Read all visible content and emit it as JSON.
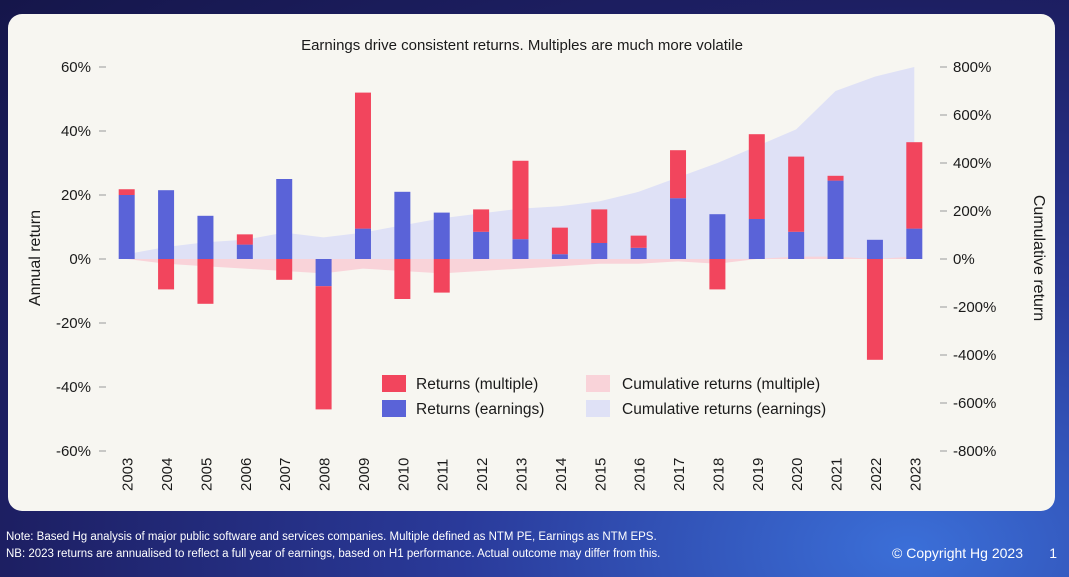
{
  "chart_data": {
    "type": "bar",
    "title": "Earnings drive consistent returns. Multiples are much more volatile",
    "ylabel": "Annual return",
    "y2label": "Cumulative return",
    "ylim": [
      -60,
      60
    ],
    "y2lim": [
      -800,
      800
    ],
    "yticks": [
      "60%",
      "40%",
      "20%",
      "0%",
      "-20%",
      "-40%",
      "-60%"
    ],
    "y2ticks": [
      "800%",
      "600%",
      "400%",
      "200%",
      "0%",
      "-200%",
      "-400%",
      "-600%",
      "-800%"
    ],
    "categories": [
      "2003",
      "2004",
      "2005",
      "2006",
      "2007",
      "2008",
      "2009",
      "2010",
      "2011",
      "2012",
      "2013",
      "2014",
      "2015",
      "2016",
      "2017",
      "2018",
      "2019",
      "2020",
      "2021",
      "2022",
      "2023"
    ],
    "series": [
      {
        "name": "Returns (earnings)",
        "kind": "bar",
        "color": "#5a63d8",
        "values": [
          20,
          21.5,
          13.5,
          4.5,
          25,
          -8.5,
          9.5,
          21,
          14.5,
          8.5,
          6.2,
          1.5,
          5,
          3.5,
          19,
          14,
          12.5,
          8.5,
          24.5,
          6,
          9.5
        ]
      },
      {
        "name": "Returns (multiple)",
        "kind": "bar",
        "color": "#f2455d",
        "values": [
          1.8,
          -9.5,
          -14,
          3.2,
          -6.5,
          -38.5,
          42.5,
          -12.5,
          -10.5,
          7,
          24.5,
          8.3,
          10.5,
          3.8,
          15,
          -9.5,
          26.5,
          23.5,
          1.5,
          -31.5,
          27
        ]
      },
      {
        "name": "Cumulative returns (multiple)",
        "kind": "area",
        "color": "#f9d3d9",
        "values": [
          0,
          -20,
          -30,
          -40,
          -50,
          -60,
          -40,
          -50,
          -60,
          -50,
          -40,
          -30,
          -20,
          -20,
          -10,
          -20,
          0,
          10,
          10,
          0,
          10
        ]
      },
      {
        "name": "Cumulative returns (earnings)",
        "kind": "area",
        "color": "#dfe1f6",
        "values": [
          20,
          50,
          70,
          80,
          110,
          90,
          110,
          140,
          170,
          190,
          210,
          220,
          240,
          280,
          340,
          400,
          470,
          540,
          700,
          760,
          800
        ]
      }
    ],
    "legend_position": "bottom-center"
  },
  "footer": {
    "note1": "Note: Based Hg analysis of major public software and services companies. Multiple defined as NTM PE, Earnings as NTM EPS.",
    "note2": "NB: 2023 returns are annualised to reflect a full year of earnings, based on H1 performance. Actual outcome may differ from this.",
    "copyright": "© Copyright Hg 2023",
    "page": "1"
  }
}
